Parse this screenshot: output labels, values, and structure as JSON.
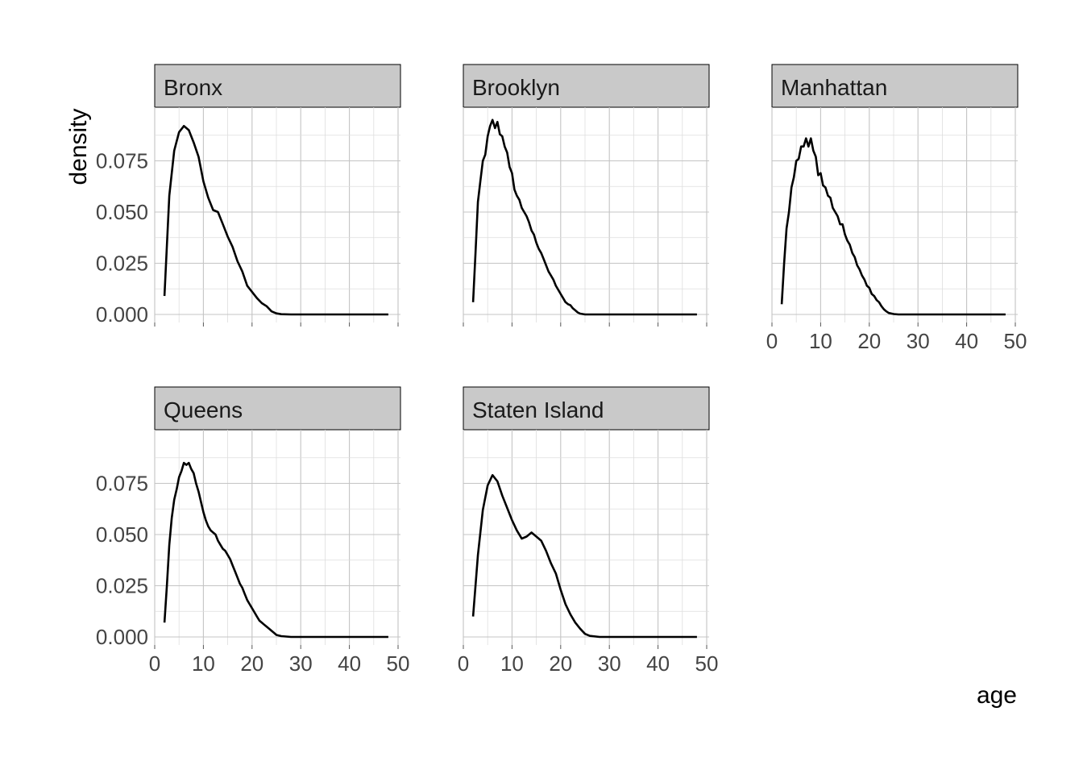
{
  "chart_data": {
    "type": "line",
    "facet_by": "borough",
    "xlabel": "age",
    "ylabel": "density",
    "xlim": [
      0,
      50
    ],
    "ylim": [
      0,
      0.1
    ],
    "x_ticks": [
      0,
      10,
      20,
      30,
      40,
      50
    ],
    "y_ticks": [
      0.0,
      0.025,
      0.05,
      0.075
    ],
    "y_tick_labels": [
      "0.000",
      "0.025",
      "0.050",
      "0.075"
    ],
    "grid": true,
    "line_color": "#000000",
    "strip_color": "#c9c9c9",
    "panels": [
      {
        "name": "Bronx",
        "x": [
          2,
          3,
          4,
          5,
          6,
          7,
          8,
          9,
          10,
          11,
          12,
          13,
          14,
          15,
          16,
          17,
          18,
          19,
          20,
          21,
          22,
          23,
          24,
          25,
          26,
          28,
          30,
          35,
          40,
          45,
          48
        ],
        "y": [
          0.009,
          0.058,
          0.08,
          0.089,
          0.092,
          0.09,
          0.084,
          0.077,
          0.065,
          0.057,
          0.051,
          0.05,
          0.044,
          0.038,
          0.033,
          0.026,
          0.021,
          0.014,
          0.011,
          0.008,
          0.0055,
          0.004,
          0.0015,
          0.0005,
          0.0001,
          0.0,
          0.0,
          0.0,
          0.0,
          0.0,
          0.0
        ]
      },
      {
        "name": "Brooklyn",
        "x": [
          2,
          2.5,
          3,
          3.5,
          4,
          4.5,
          5,
          5.5,
          6,
          6.5,
          7,
          7.5,
          8,
          8.5,
          9,
          9.5,
          10,
          10.5,
          11,
          11.5,
          12,
          12.5,
          13,
          13.5,
          14,
          14.5,
          15,
          15.5,
          16,
          16.5,
          17,
          17.5,
          18,
          18.5,
          19,
          19.5,
          20,
          20.5,
          21,
          21.5,
          22,
          22.5,
          23,
          23.5,
          24,
          25,
          26,
          28,
          30,
          35,
          40,
          45,
          48
        ],
        "y": [
          0.006,
          0.03,
          0.055,
          0.065,
          0.075,
          0.078,
          0.087,
          0.092,
          0.095,
          0.091,
          0.094,
          0.088,
          0.087,
          0.082,
          0.079,
          0.072,
          0.069,
          0.061,
          0.058,
          0.056,
          0.052,
          0.05,
          0.048,
          0.045,
          0.041,
          0.039,
          0.035,
          0.032,
          0.03,
          0.027,
          0.024,
          0.021,
          0.019,
          0.017,
          0.014,
          0.012,
          0.01,
          0.008,
          0.006,
          0.005,
          0.0045,
          0.003,
          0.002,
          0.001,
          0.0004,
          0.0,
          0.0,
          0.0,
          0.0,
          0.0,
          0.0,
          0.0,
          0.0
        ]
      },
      {
        "name": "Manhattan",
        "x": [
          2,
          2.5,
          3,
          3.5,
          4,
          4.5,
          5,
          5.5,
          6,
          6.5,
          7,
          7.5,
          8,
          8.5,
          9,
          9.5,
          10,
          10.5,
          11,
          11.5,
          12,
          12.5,
          13,
          13.5,
          14,
          14.5,
          15,
          15.5,
          16,
          16.5,
          17,
          17.5,
          18,
          18.5,
          19,
          19.5,
          20,
          20.5,
          21,
          21.5,
          22,
          22.5,
          23,
          23.5,
          24,
          25,
          26,
          28,
          30,
          35,
          40,
          45,
          48
        ],
        "y": [
          0.005,
          0.025,
          0.042,
          0.05,
          0.062,
          0.067,
          0.075,
          0.076,
          0.082,
          0.082,
          0.086,
          0.082,
          0.086,
          0.08,
          0.077,
          0.068,
          0.069,
          0.063,
          0.062,
          0.058,
          0.057,
          0.052,
          0.05,
          0.048,
          0.044,
          0.044,
          0.039,
          0.036,
          0.034,
          0.03,
          0.028,
          0.024,
          0.022,
          0.019,
          0.017,
          0.014,
          0.013,
          0.01,
          0.009,
          0.007,
          0.006,
          0.004,
          0.0025,
          0.0015,
          0.0007,
          0.0002,
          0.0,
          0.0,
          0.0,
          0.0,
          0.0,
          0.0,
          0.0
        ]
      },
      {
        "name": "Queens",
        "x": [
          2,
          2.5,
          3,
          3.5,
          4,
          4.5,
          5,
          5.5,
          6,
          6.5,
          7,
          7.5,
          8,
          8.5,
          9,
          9.5,
          10,
          10.5,
          11,
          11.5,
          12,
          12.5,
          13,
          13.5,
          14,
          14.5,
          15,
          15.5,
          16,
          16.5,
          17,
          17.5,
          18,
          18.5,
          19,
          19.5,
          20,
          20.5,
          21,
          21.5,
          22,
          22.5,
          23,
          23.5,
          24,
          24.5,
          25,
          26,
          28,
          30,
          35,
          40,
          45,
          48
        ],
        "y": [
          0.007,
          0.025,
          0.045,
          0.058,
          0.067,
          0.072,
          0.078,
          0.081,
          0.085,
          0.084,
          0.085,
          0.082,
          0.08,
          0.075,
          0.071,
          0.066,
          0.061,
          0.057,
          0.054,
          0.052,
          0.051,
          0.05,
          0.047,
          0.045,
          0.043,
          0.042,
          0.04,
          0.038,
          0.035,
          0.032,
          0.029,
          0.026,
          0.024,
          0.021,
          0.018,
          0.016,
          0.014,
          0.012,
          0.01,
          0.008,
          0.007,
          0.006,
          0.005,
          0.004,
          0.003,
          0.002,
          0.001,
          0.0004,
          0.0,
          0.0,
          0.0,
          0.0,
          0.0,
          0.0
        ]
      },
      {
        "name": "Staten Island",
        "x": [
          2,
          3,
          4,
          5,
          6,
          7,
          8,
          9,
          10,
          11,
          12,
          13,
          14,
          15,
          16,
          17,
          18,
          19,
          20,
          21,
          22,
          23,
          24,
          25,
          26,
          28,
          30,
          35,
          40,
          45,
          48
        ],
        "y": [
          0.01,
          0.04,
          0.062,
          0.074,
          0.079,
          0.076,
          0.069,
          0.063,
          0.057,
          0.052,
          0.048,
          0.049,
          0.051,
          0.049,
          0.047,
          0.042,
          0.036,
          0.031,
          0.023,
          0.016,
          0.011,
          0.007,
          0.004,
          0.0015,
          0.0005,
          0.0,
          0.0,
          0.0,
          0.0,
          0.0,
          0.0
        ]
      }
    ]
  }
}
